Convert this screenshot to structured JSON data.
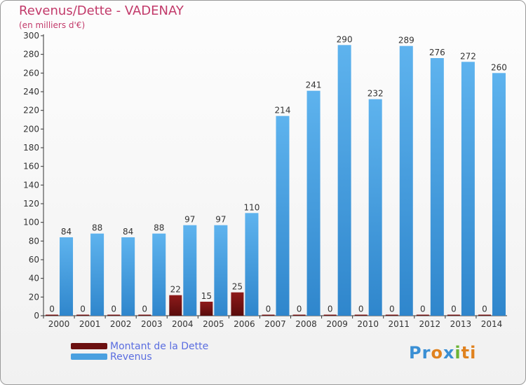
{
  "header": {
    "title": "Revenus/Dette - VADENAY",
    "subtitle": "(en milliers d'€)"
  },
  "chart_data": {
    "type": "bar",
    "categories": [
      "2000",
      "2001",
      "2002",
      "2003",
      "2004",
      "2005",
      "2006",
      "2007",
      "2008",
      "2009",
      "2010",
      "2011",
      "2012",
      "2013",
      "2014"
    ],
    "series": [
      {
        "name": "Montant de la Dette",
        "color": "#7a1212",
        "values": [
          0,
          0,
          0,
          0,
          22,
          15,
          25,
          0,
          0,
          0,
          0,
          0,
          0,
          0,
          0
        ]
      },
      {
        "name": "Revenus",
        "color": "#4aa0e0",
        "values": [
          84,
          88,
          84,
          88,
          97,
          97,
          110,
          214,
          241,
          290,
          232,
          289,
          276,
          272,
          260
        ]
      }
    ],
    "ylim": [
      0,
      300
    ],
    "yticks": [
      0,
      20,
      40,
      60,
      80,
      100,
      120,
      140,
      160,
      180,
      200,
      220,
      240,
      260,
      280,
      300
    ],
    "grid": false,
    "legend_position": "bottom-left"
  },
  "logo": {
    "parts": [
      "Pr",
      "o",
      "x",
      "i",
      "ti"
    ]
  }
}
